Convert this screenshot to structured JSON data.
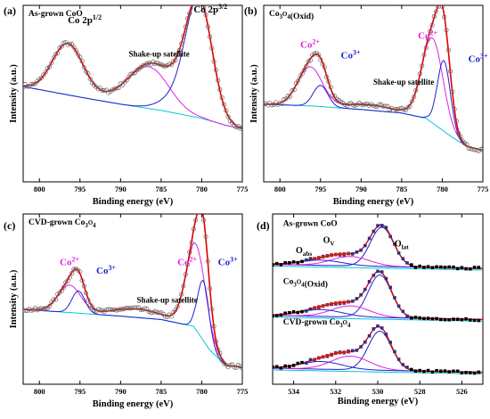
{
  "chart_data": [
    {
      "type": "line",
      "panel_label": "(a)",
      "sample_label": "As-grown CoO",
      "xlabel": "Binding energy (eV)",
      "ylabel": "Intensity (a.u.)",
      "xlim": [
        802,
        775
      ],
      "xticks": [
        800,
        795,
        790,
        785,
        780,
        775
      ],
      "ylim": [
        0,
        1
      ],
      "annotations": [
        {
          "text": "Co 2p",
          "sup": "1/2",
          "x": 796.5,
          "y": 0.9,
          "color": "#000000",
          "size": 11
        },
        {
          "text": "Co 2p",
          "sup": "3/2",
          "x": 781.0,
          "y": 0.96,
          "color": "#000000",
          "size": 11
        },
        {
          "text": "Shake-up satellite",
          "sup": "",
          "x": 789.0,
          "y": 0.71,
          "color": "#000000",
          "size": 9
        }
      ],
      "series": [
        {
          "role": "background",
          "color": "#00c8d8",
          "points": [
            [
              802,
              0.54
            ],
            [
              795,
              0.48
            ],
            [
              790,
              0.44
            ],
            [
              785,
              0.405
            ],
            [
              780,
              0.36
            ],
            [
              777,
              0.32
            ],
            [
              775,
              0.3
            ]
          ]
        },
        {
          "role": "component",
          "color": "#e020e0",
          "peaks": [
            [
              796.5,
              0.29,
              1.9
            ],
            [
              788.8,
              0.05,
              3.0
            ],
            [
              786.3,
              0.2,
              2.4
            ]
          ]
        },
        {
          "role": "component",
          "color": "#2020d0",
          "peaks": [
            [
              780.3,
              0.62,
              1.6
            ],
            [
              782.5,
              0.1,
              2.2
            ]
          ]
        },
        {
          "role": "envelope",
          "color": "#e00000",
          "peaks": [
            [
              796.5,
              0.29,
              1.9
            ],
            [
              788.8,
              0.05,
              3.0
            ],
            [
              786.3,
              0.2,
              2.4
            ],
            [
              780.3,
              0.62,
              1.6
            ],
            [
              782.5,
              0.1,
              2.2
            ]
          ]
        },
        {
          "role": "raw",
          "color": "#666666",
          "noise": 0.01,
          "step": 0.25,
          "peaks": [
            [
              796.5,
              0.29,
              1.9
            ],
            [
              788.8,
              0.05,
              3.0
            ],
            [
              786.3,
              0.2,
              2.4
            ],
            [
              780.3,
              0.62,
              1.6
            ],
            [
              782.5,
              0.1,
              2.2
            ]
          ]
        }
      ]
    },
    {
      "type": "line",
      "panel_label": "(b)",
      "sample_label": "Co3O4(Oxid)",
      "xlabel": "Binding energy (eV)",
      "ylabel": "Intensity (a.u.)",
      "xlim": [
        802,
        775
      ],
      "xticks": [
        800,
        795,
        790,
        785,
        780,
        775
      ],
      "ylim": [
        0,
        1
      ],
      "annotations": [
        {
          "text": "Co",
          "sup": "2+",
          "x": 797.5,
          "y": 0.76,
          "color": "#e020e0",
          "size": 11
        },
        {
          "text": "Co",
          "sup": "3+",
          "x": 792.5,
          "y": 0.7,
          "color": "#2020d0",
          "size": 11
        },
        {
          "text": "Shake-up satellite",
          "sup": "",
          "x": 788.5,
          "y": 0.55,
          "color": "#000000",
          "size": 9
        },
        {
          "text": "Co",
          "sup": "2+",
          "x": 783.0,
          "y": 0.81,
          "color": "#e020e0",
          "size": 11
        },
        {
          "text": "Co",
          "sup": "3+",
          "x": 776.8,
          "y": 0.68,
          "color": "#2020d0",
          "size": 11
        }
      ],
      "series": [
        {
          "role": "background",
          "color": "#00c8d8",
          "points": [
            [
              802,
              0.44
            ],
            [
              796,
              0.43
            ],
            [
              790,
              0.41
            ],
            [
              785,
              0.39
            ],
            [
              782,
              0.36
            ],
            [
              779,
              0.26
            ],
            [
              777,
              0.2
            ],
            [
              775,
              0.18
            ]
          ]
        },
        {
          "role": "component",
          "color": "#e020e0",
          "peaks": [
            [
              796.3,
              0.22,
              1.5
            ],
            [
              789.0,
              0.03,
              3.0
            ],
            [
              781.2,
              0.48,
              1.3
            ]
          ]
        },
        {
          "role": "component",
          "color": "#2020d0",
          "peaks": [
            [
              795.0,
              0.12,
              0.9
            ],
            [
              779.8,
              0.4,
              0.8
            ]
          ]
        },
        {
          "role": "envelope",
          "color": "#e00000",
          "peaks": [
            [
              796.3,
              0.22,
              1.5
            ],
            [
              789.0,
              0.03,
              3.0
            ],
            [
              781.2,
              0.48,
              1.3
            ],
            [
              795.0,
              0.12,
              0.9
            ],
            [
              779.8,
              0.4,
              0.8
            ]
          ]
        },
        {
          "role": "raw",
          "color": "#666666",
          "noise": 0.01,
          "step": 0.25,
          "peaks": [
            [
              796.3,
              0.22,
              1.5
            ],
            [
              789.0,
              0.03,
              3.0
            ],
            [
              781.2,
              0.48,
              1.3
            ],
            [
              795.0,
              0.12,
              0.9
            ],
            [
              779.8,
              0.4,
              0.8
            ]
          ]
        }
      ]
    },
    {
      "type": "line",
      "panel_label": "(c)",
      "sample_label": "CVD-grown Co3O4",
      "xlabel": "Binding energy (eV)",
      "ylabel": "Intensity (a.u.)",
      "xlim": [
        802,
        775
      ],
      "xticks": [
        800,
        795,
        790,
        785,
        780,
        775
      ],
      "ylim": [
        0,
        1
      ],
      "annotations": [
        {
          "text": "Co",
          "sup": "2+",
          "x": 797.5,
          "y": 0.7,
          "color": "#e020e0",
          "size": 11
        },
        {
          "text": "Co",
          "sup": "3+",
          "x": 793.0,
          "y": 0.65,
          "color": "#2020d0",
          "size": 11
        },
        {
          "text": "Shake-up satellite",
          "sup": "",
          "x": 788.0,
          "y": 0.48,
          "color": "#000000",
          "size": 9
        },
        {
          "text": "Co",
          "sup": "2+",
          "x": 783.0,
          "y": 0.7,
          "color": "#e020e0",
          "size": 11
        },
        {
          "text": "Co",
          "sup": "3+",
          "x": 778.0,
          "y": 0.7,
          "color": "#2020d0",
          "size": 11
        }
      ],
      "series": [
        {
          "role": "background",
          "color": "#00c8d8",
          "points": [
            [
              802,
              0.44
            ],
            [
              796,
              0.42
            ],
            [
              790,
              0.4
            ],
            [
              785,
              0.38
            ],
            [
              781,
              0.34
            ],
            [
              779,
              0.2
            ],
            [
              777,
              0.11
            ],
            [
              775,
              0.1
            ]
          ]
        },
        {
          "role": "component",
          "color": "#e020e0",
          "peaks": [
            [
              796.3,
              0.16,
              1.4
            ],
            [
              788.0,
              0.05,
              3.0
            ],
            [
              780.7,
              0.5,
              1.2
            ]
          ]
        },
        {
          "role": "component",
          "color": "#2020d0",
          "peaks": [
            [
              795.2,
              0.13,
              0.8
            ],
            [
              779.8,
              0.35,
              0.7
            ]
          ]
        },
        {
          "role": "envelope",
          "color": "#e00000",
          "peaks": [
            [
              796.3,
              0.16,
              1.4
            ],
            [
              788.0,
              0.05,
              3.0
            ],
            [
              780.7,
              0.5,
              1.2
            ],
            [
              795.2,
              0.13,
              0.8
            ],
            [
              779.8,
              0.35,
              0.7
            ]
          ]
        },
        {
          "role": "raw",
          "color": "#666666",
          "noise": 0.01,
          "step": 0.25,
          "peaks": [
            [
              796.3,
              0.16,
              1.4
            ],
            [
              788.0,
              0.05,
              3.0
            ],
            [
              780.7,
              0.5,
              1.2
            ],
            [
              795.2,
              0.13,
              0.8
            ],
            [
              779.8,
              0.35,
              0.7
            ]
          ]
        }
      ]
    },
    {
      "type": "line",
      "panel_label": "(d)",
      "xlabel": "Binding energy (eV)",
      "xlim": [
        535,
        525
      ],
      "xticks": [
        534,
        532,
        530,
        528,
        526
      ],
      "ylim": [
        0,
        1
      ],
      "annotations": [
        {
          "text": "As-grown CoO",
          "sup": "",
          "x": 534.5,
          "y": 0.93,
          "color": "#000000",
          "size": 9.5
        },
        {
          "text": "O",
          "sub": "abs",
          "x": 533.9,
          "y": 0.77,
          "color": "#000000",
          "size": 10
        },
        {
          "text": "O",
          "sub": "V",
          "x": 532.6,
          "y": 0.83,
          "color": "#000000",
          "size": 10
        },
        {
          "text": "O",
          "sub": "lat",
          "x": 529.2,
          "y": 0.81,
          "color": "#000000",
          "size": 10
        },
        {
          "text": "Co3O4(Oxid)",
          "sup": "",
          "x": 534.5,
          "y": 0.59,
          "color": "#000000",
          "size": 9.5
        },
        {
          "text": "CVD-grown Co3O4",
          "sup": "",
          "x": 534.5,
          "y": 0.35,
          "color": "#000000",
          "size": 9.5
        }
      ],
      "stacks": [
        {
          "offset": 0.68,
          "peaks": [
            [
              529.8,
              0.23,
              0.55
            ],
            [
              531.3,
              0.055,
              0.9
            ],
            [
              532.7,
              0.03,
              1.0
            ]
          ]
        },
        {
          "offset": 0.38,
          "peaks": [
            [
              529.9,
              0.25,
              0.55
            ],
            [
              531.3,
              0.065,
              0.9
            ],
            [
              532.7,
              0.04,
              1.0
            ]
          ]
        },
        {
          "offset": 0.07,
          "peaks": [
            [
              529.9,
              0.23,
              0.55
            ],
            [
              531.3,
              0.08,
              0.9
            ],
            [
              532.7,
              0.045,
              1.0
            ]
          ]
        }
      ]
    }
  ]
}
